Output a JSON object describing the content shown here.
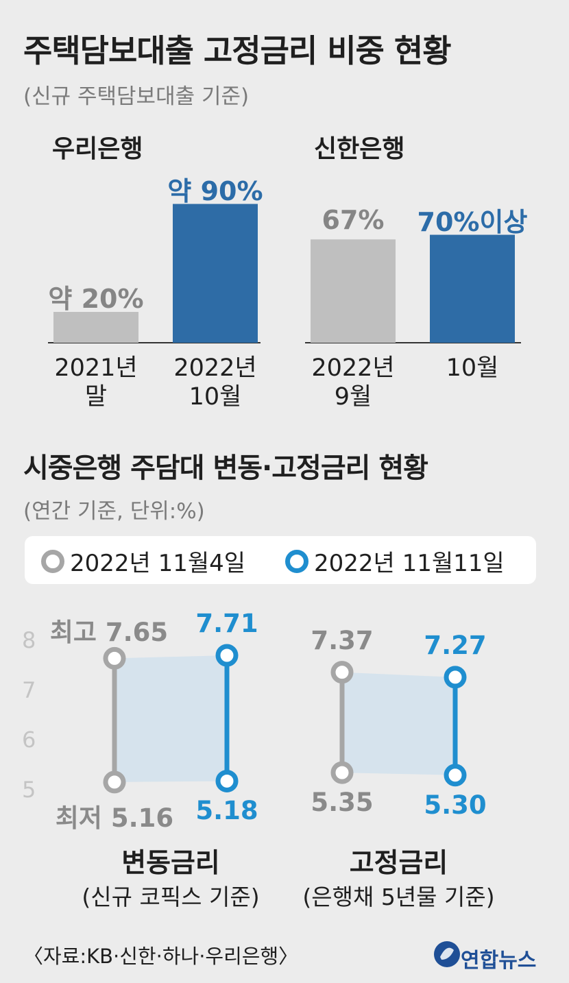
{
  "title": "주택담보대출 고정금리 비중 현황",
  "subtitle": "(신규 주택담보대출 기준)",
  "colors": {
    "gray_bar": "#bfbfbf",
    "blue_bar": "#2e6ca6",
    "gray_line": "#a6a6a6",
    "blue_line": "#1f8ecf",
    "band": "#cfe0ee"
  },
  "chart_data": [
    {
      "type": "bar",
      "title": "우리은행",
      "categories": [
        "2021년 말",
        "2022년 10월"
      ],
      "category_lines": [
        [
          "2021년",
          "말"
        ],
        [
          "2022년",
          "10월"
        ]
      ],
      "values": [
        20,
        90
      ],
      "labels": [
        "약 20%",
        "약 90%"
      ],
      "ylim": [
        0,
        100
      ]
    },
    {
      "type": "bar",
      "title": "신한은행",
      "categories": [
        "2022년 9월",
        "10월"
      ],
      "category_lines": [
        [
          "2022년",
          "9월"
        ],
        [
          "10월",
          ""
        ]
      ],
      "values": [
        67,
        70
      ],
      "labels": [
        "67%",
        "70%이상"
      ],
      "ylim": [
        0,
        100
      ]
    },
    {
      "type": "line",
      "title": "시중은행 주담대 변동·고정금리 현황",
      "subtitle": "(연간 기준, 단위:%)",
      "yticks": [
        "8",
        "7",
        "6",
        "5"
      ],
      "ylim": [
        5,
        8
      ],
      "series": [
        {
          "name": "2022년 11월4일",
          "values": [
            {
              "min": 5.16,
              "max": 7.65
            },
            {
              "min": 5.35,
              "max": 7.37
            }
          ]
        },
        {
          "name": "2022년 11월11일",
          "values": [
            {
              "min": 5.18,
              "max": 7.71
            },
            {
              "min": 5.3,
              "max": 7.27
            }
          ]
        }
      ],
      "groups": [
        {
          "title": "변동금리",
          "subtitle": "(신규 코픽스 기준)",
          "labels": {
            "top_old": "최고 7.65",
            "top_new": "7.71",
            "bot_old": "최저 5.16",
            "bot_new": "5.18"
          }
        },
        {
          "title": "고정금리",
          "subtitle": "(은행채 5년물 기준)",
          "labels": {
            "top_old": "7.37",
            "top_new": "7.27",
            "bot_old": "5.35",
            "bot_new": "5.30"
          }
        }
      ]
    }
  ],
  "source": "〈자료:KB·신한·하나·우리은행〉",
  "logo": "연합뉴스"
}
